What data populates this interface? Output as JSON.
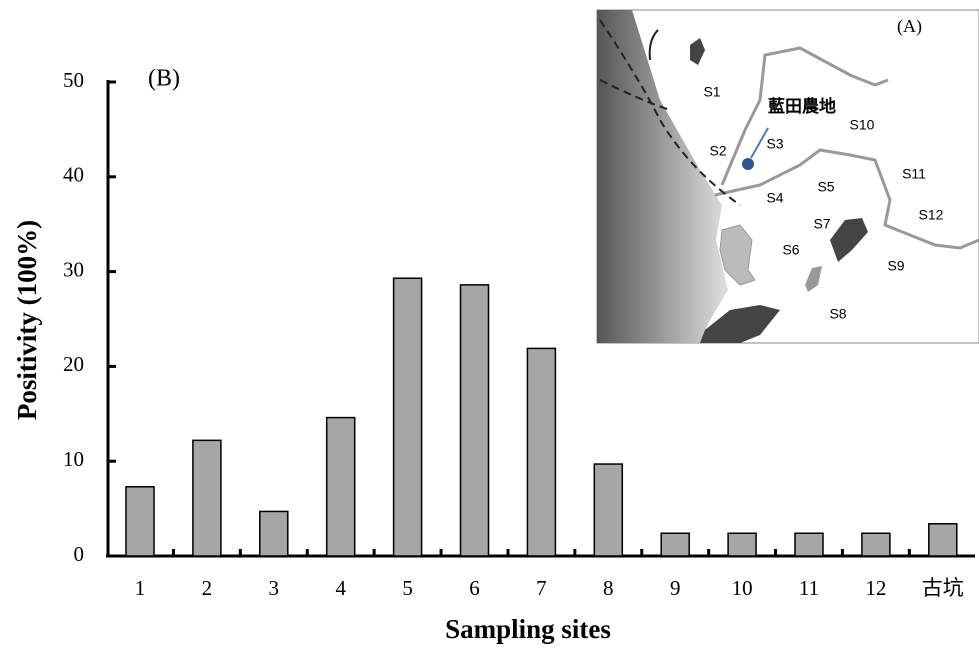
{
  "chart_data": {
    "type": "bar",
    "annotation": "(B)",
    "x_label": "Sampling sites",
    "y_label": "Positivity (100%)",
    "categories": [
      "1",
      "2",
      "3",
      "4",
      "5",
      "6",
      "7",
      "8",
      "9",
      "10",
      "11",
      "12",
      "古坑"
    ],
    "values": [
      7.3,
      12.2,
      4.7,
      14.6,
      29.3,
      28.6,
      21.9,
      9.7,
      2.4,
      2.4,
      2.4,
      2.4,
      3.4
    ],
    "color": "#a6a6a6",
    "ylim": [
      0,
      50
    ],
    "yticks": [
      0,
      10,
      20,
      30,
      40,
      50
    ],
    "grid": false
  },
  "inset_map": {
    "title": "(A)",
    "highlight": "藍田農地",
    "sites": [
      "S1",
      "S2",
      "S3",
      "S4",
      "S5",
      "S6",
      "S7",
      "S8",
      "S9",
      "S10",
      "S11",
      "S12"
    ]
  }
}
